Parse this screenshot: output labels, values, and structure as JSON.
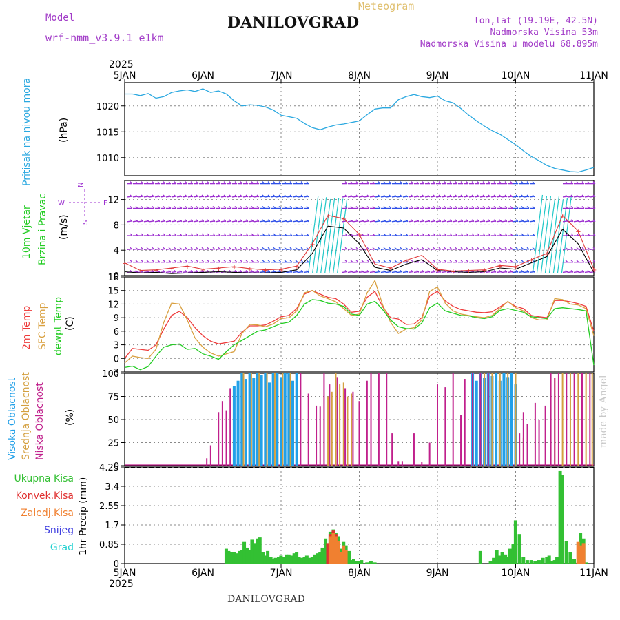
{
  "header": {
    "model_label": "Model",
    "model_name": "wrf-nmm_v3.9.1 e1km",
    "chart_kind": "Meteogram",
    "station": "DANILOVGRAD",
    "lonlat": "lon,lat (19.19E, 42.5N)",
    "elevation": "Nadmorska Visina 53m",
    "elevation_model": "Nadmorska Visina u modelu 68.895m",
    "year": "2025",
    "footer_station": "DANILOVGRAD",
    "made_by": "made by Angel"
  },
  "colors": {
    "pressure": "#2aa8e0",
    "wind_purple": "#9c2fd0",
    "wind_blue": "#3050e8",
    "wind_cyan": "#20c8c8",
    "wind_green": "#2ec82e",
    "wind_red": "#e03838",
    "temp_2m": "#ee3b3b",
    "temp_sfc": "#d9a040",
    "dewpt": "#22cc22",
    "cloud_high": "#22a0e8",
    "cloud_mid": "#d4a040",
    "cloud_low": "#c0208c",
    "rain_total": "#33c033",
    "rain_conv": "#e03030",
    "rain_frozen": "#f08030",
    "snow": "#4040e0",
    "hail": "#20d0d0",
    "grid": "#888888"
  },
  "chart_data": [
    {
      "id": "pressure",
      "type": "line",
      "title": "",
      "ylabel": "Pritisak na nivou mora",
      "unit": "(hPa)",
      "ylim": [
        1006.5,
        1024.5
      ],
      "yticks": [
        1010,
        1015,
        1020
      ],
      "x": [
        0,
        0.1,
        0.2,
        0.3,
        0.4,
        0.5,
        0.6,
        0.7,
        0.8,
        0.9,
        1.0,
        1.1,
        1.2,
        1.3,
        1.4,
        1.5,
        1.6,
        1.7,
        1.8,
        1.9,
        2.0,
        2.1,
        2.2,
        2.3,
        2.4,
        2.5,
        2.6,
        2.7,
        2.8,
        2.9,
        3.0,
        3.1,
        3.2,
        3.3,
        3.4,
        3.5,
        3.6,
        3.7,
        3.8,
        3.9,
        4.0,
        4.1,
        4.2,
        4.3,
        4.4,
        4.5,
        4.6,
        4.7,
        4.8,
        4.9,
        5.0,
        5.1,
        5.2,
        5.3,
        5.4,
        5.5,
        5.6,
        5.7,
        5.8,
        5.9,
        6.0
      ],
      "values": [
        1022.3,
        1022.3,
        1022.0,
        1022.4,
        1021.5,
        1021.8,
        1022.6,
        1022.9,
        1023.1,
        1022.8,
        1023.3,
        1022.6,
        1022.9,
        1022.3,
        1021.0,
        1020.0,
        1020.2,
        1020.1,
        1019.8,
        1019.2,
        1018.2,
        1017.9,
        1017.6,
        1016.6,
        1015.8,
        1015.4,
        1015.9,
        1016.3,
        1016.5,
        1016.8,
        1017.1,
        1018.3,
        1019.4,
        1019.6,
        1019.6,
        1021.2,
        1021.8,
        1022.2,
        1021.8,
        1021.6,
        1021.9,
        1021.0,
        1020.6,
        1019.5,
        1018.2,
        1017.1,
        1016.1,
        1015.2,
        1014.5,
        1013.5,
        1012.5,
        1011.3,
        1010.2,
        1009.4,
        1008.5,
        1007.9,
        1007.6,
        1007.3,
        1007.2,
        1007.6,
        1008.1
      ],
      "color": "pressure"
    },
    {
      "id": "wind",
      "type": "line",
      "title": "",
      "ylabel": "10m Vjetar Brzina i Pravac",
      "unit": "(m/s)",
      "ylim": [
        0,
        15
      ],
      "yticks": [
        0,
        4,
        8,
        12
      ],
      "compass": {
        "n": "N",
        "s": "S",
        "e": "E",
        "w": "W"
      },
      "barb_rows": [
        0.5,
        2.1,
        4.1,
        6.3,
        8.5,
        10.6,
        12.4,
        14.5
      ],
      "x": [
        0,
        0.2,
        0.4,
        0.6,
        0.8,
        1.0,
        1.2,
        1.4,
        1.6,
        1.8,
        2.0,
        2.2,
        2.4,
        2.6,
        2.8,
        3.0,
        3.2,
        3.4,
        3.6,
        3.8,
        4.0,
        4.2,
        4.4,
        4.6,
        4.8,
        5.0,
        5.2,
        5.4,
        5.6,
        5.8,
        6.0
      ],
      "speed": [
        0.6,
        0.4,
        0.5,
        0.3,
        0.4,
        0.5,
        0.6,
        0.5,
        0.4,
        0.4,
        0.5,
        0.9,
        3.5,
        7.8,
        7.5,
        5.0,
        1.3,
        0.8,
        1.8,
        2.5,
        0.8,
        0.6,
        0.5,
        0.6,
        1.2,
        1.0,
        2.0,
        3.0,
        7.3,
        5.0,
        0.5
      ],
      "gust": [
        2.0,
        0.8,
        0.9,
        1.2,
        1.5,
        1.0,
        1.2,
        1.4,
        1.1,
        0.9,
        1.0,
        1.5,
        5.0,
        9.5,
        9.0,
        6.5,
        1.8,
        1.2,
        2.4,
        3.2,
        1.0,
        0.7,
        0.8,
        0.9,
        1.6,
        1.4,
        2.5,
        3.5,
        9.5,
        7.0,
        1.0
      ],
      "shaded_periods": [
        [
          2.35,
          2.75
        ],
        [
          5.22,
          5.6
        ]
      ]
    },
    {
      "id": "temperature",
      "type": "line",
      "title": "",
      "ylabel": "2m Temp / SFC Temp / dewpt Temp",
      "unit": "(C)",
      "ylim": [
        -3,
        18
      ],
      "yticks": [
        -3,
        0,
        3,
        6,
        9,
        12,
        15,
        18
      ],
      "x": [
        0,
        0.1,
        0.2,
        0.3,
        0.4,
        0.5,
        0.6,
        0.7,
        0.8,
        0.9,
        1.0,
        1.1,
        1.2,
        1.3,
        1.4,
        1.5,
        1.6,
        1.7,
        1.8,
        1.9,
        2.0,
        2.1,
        2.2,
        2.3,
        2.4,
        2.5,
        2.6,
        2.7,
        2.8,
        2.9,
        3.0,
        3.1,
        3.2,
        3.3,
        3.4,
        3.5,
        3.6,
        3.7,
        3.8,
        3.9,
        4.0,
        4.1,
        4.2,
        4.3,
        4.4,
        4.5,
        4.6,
        4.7,
        4.8,
        4.9,
        5.0,
        5.1,
        5.2,
        5.3,
        5.4,
        5.5,
        5.6,
        5.7,
        5.8,
        5.9,
        6.0
      ],
      "series": [
        {
          "name": "2m Temp",
          "color": "temp_2m",
          "values": [
            0,
            2.2,
            2.0,
            1.8,
            3,
            6.5,
            9.5,
            10.4,
            9.0,
            6.8,
            5.0,
            3.8,
            3.2,
            3.5,
            3.8,
            5.8,
            7.2,
            7.2,
            7.4,
            8.2,
            9.2,
            9.5,
            11,
            14.2,
            15.0,
            14.2,
            13.5,
            13.2,
            12.0,
            10.2,
            10.4,
            13.5,
            14.8,
            11.4,
            9.0,
            8.7,
            7.5,
            7.6,
            9.0,
            13.8,
            14.8,
            12.7,
            11.5,
            10.8,
            10.5,
            10.2,
            10.1,
            10.3,
            11.4,
            12.5,
            11.5,
            11.0,
            9.5,
            9.2,
            9.0,
            12.8,
            12.8,
            12.5,
            12.1,
            11.5,
            6.0
          ]
        },
        {
          "name": "SFC Temp",
          "color": "temp_sfc",
          "values": [
            -1,
            0.5,
            0.2,
            0,
            2,
            8,
            12.2,
            12.0,
            8.5,
            4.5,
            2.5,
            1.2,
            0.5,
            1.0,
            1.5,
            5.5,
            7.5,
            7.4,
            7.0,
            7.6,
            8.8,
            9.0,
            10.5,
            14.5,
            15.0,
            13.8,
            13.2,
            12.5,
            11.0,
            9.5,
            9.8,
            14.5,
            17.2,
            11.8,
            8.0,
            5.5,
            6.5,
            6.8,
            8.5,
            14.8,
            15.8,
            12.2,
            10.5,
            9.8,
            9.5,
            9.2,
            9.0,
            9.5,
            11.0,
            12.6,
            11.2,
            10.5,
            9.0,
            8.5,
            8.5,
            13.2,
            13.0,
            12.0,
            11.8,
            11.0,
            5.0
          ]
        },
        {
          "name": "dewpt Temp",
          "color": "dewpt",
          "values": [
            -2,
            -1.7,
            -2.5,
            -1.8,
            0.5,
            2.5,
            3.0,
            3.2,
            2.0,
            2.2,
            1.0,
            0.5,
            -0.2,
            1.5,
            3.0,
            4.0,
            5.0,
            6.0,
            6.3,
            7.0,
            7.7,
            8.0,
            9.5,
            12.0,
            13.0,
            12.8,
            12.2,
            12.0,
            11.5,
            9.8,
            9.5,
            12.0,
            12.6,
            10.8,
            8.5,
            7.0,
            6.6,
            6.5,
            7.8,
            11.2,
            12.2,
            10.5,
            10.0,
            9.5,
            9.4,
            9.0,
            8.8,
            9.2,
            10.6,
            11.0,
            10.6,
            10.2,
            9.2,
            9.0,
            8.8,
            11.0,
            11.2,
            11.0,
            10.8,
            10.5,
            -1.5
          ]
        }
      ]
    },
    {
      "id": "clouds",
      "type": "bar",
      "title": "",
      "ylabel": "Visoka Oblacnost / Srednja Oblacnost / Niska Oblacnost",
      "unit": "(%)",
      "ylim": [
        0,
        100
      ],
      "yticks": [
        0,
        25,
        50,
        75,
        100
      ],
      "series": [
        {
          "name": "Visoka Oblacnost",
          "color": "cloud_high",
          "x": [
            1.4,
            1.45,
            1.5,
            1.55,
            1.6,
            1.65,
            1.7,
            1.75,
            1.8,
            1.85,
            1.9,
            1.95,
            2.0,
            2.05,
            2.1,
            2.15,
            2.2,
            4.45,
            4.5,
            4.55,
            4.6,
            4.65,
            4.7,
            4.75,
            4.8,
            4.85,
            4.9,
            4.95,
            5.0
          ],
          "values": [
            86,
            92,
            100,
            94,
            100,
            95,
            100,
            98,
            100,
            90,
            100,
            100,
            96,
            100,
            100,
            92,
            100,
            100,
            92,
            100,
            95,
            100,
            97,
            100,
            92,
            100,
            96,
            100,
            88
          ]
        },
        {
          "name": "Srednja Oblacnost",
          "color": "cloud_mid",
          "x": [
            1.52,
            1.62,
            1.72,
            1.82,
            1.92,
            2.02,
            2.12,
            2.6,
            2.65,
            2.7,
            2.75,
            2.8,
            2.85,
            2.9,
            4.6,
            4.7,
            4.8,
            4.9,
            5.0,
            5.1,
            5.5,
            5.6,
            5.7,
            5.8,
            5.9,
            5.98
          ],
          "values": [
            100,
            100,
            100,
            100,
            100,
            100,
            100,
            75,
            80,
            100,
            88,
            90,
            75,
            78,
            100,
            100,
            100,
            100,
            100,
            30,
            95,
            100,
            100,
            100,
            100,
            100
          ]
        },
        {
          "name": "Niska Oblacnost",
          "color": "cloud_low",
          "x": [
            1.05,
            1.1,
            1.2,
            1.25,
            1.3,
            1.35,
            2.25,
            2.35,
            2.45,
            2.5,
            2.55,
            2.62,
            2.72,
            2.82,
            2.92,
            3.0,
            3.1,
            3.15,
            3.25,
            3.35,
            3.42,
            3.5,
            3.55,
            3.7,
            3.8,
            3.9,
            4.0,
            4.1,
            4.2,
            4.3,
            4.35,
            4.45,
            4.55,
            4.65,
            5.05,
            5.1,
            5.15,
            5.25,
            5.3,
            5.38,
            5.45,
            5.5,
            5.55,
            5.65,
            5.75,
            5.85,
            5.95
          ],
          "values": [
            8,
            22,
            58,
            70,
            60,
            84,
            100,
            78,
            65,
            64,
            100,
            88,
            96,
            84,
            80,
            70,
            92,
            100,
            100,
            100,
            35,
            5,
            5,
            35,
            4,
            25,
            88,
            85,
            100,
            55,
            94,
            100,
            100,
            100,
            35,
            58,
            45,
            68,
            50,
            65,
            100,
            95,
            100,
            100,
            100,
            100,
            100
          ]
        }
      ]
    },
    {
      "id": "precip",
      "type": "bar",
      "title": "",
      "ylabel": "1hr Precip",
      "unit": "(mm)",
      "ylim": [
        0,
        4.25
      ],
      "yticks": [
        0,
        0.85,
        1.7,
        2.55,
        3.4,
        4.25
      ],
      "legend": [
        "Ukupna Kisa",
        "Konvek.Kisa",
        "Zaledj.Kisa",
        "Snijeg",
        "Grad"
      ],
      "legend_colors": [
        "rain_total",
        "rain_conv",
        "rain_frozen",
        "snow",
        "hail"
      ],
      "series": [
        {
          "name": "Ukupna Kisa",
          "color": "rain_total",
          "x": [
            1.3,
            1.33,
            1.36,
            1.4,
            1.43,
            1.47,
            1.5,
            1.53,
            1.57,
            1.6,
            1.63,
            1.67,
            1.7,
            1.73,
            1.77,
            1.8,
            1.83,
            1.87,
            1.9,
            1.93,
            1.97,
            2.0,
            2.03,
            2.07,
            2.1,
            2.13,
            2.17,
            2.2,
            2.23,
            2.27,
            2.3,
            2.33,
            2.37,
            2.4,
            2.43,
            2.47,
            2.5,
            2.53,
            2.57,
            2.6,
            2.63,
            2.67,
            2.7,
            2.73,
            2.77,
            2.8,
            2.83,
            2.87,
            2.9,
            2.93,
            2.97,
            3.0,
            3.03,
            3.1,
            3.15,
            3.2,
            4.55,
            4.68,
            4.72,
            4.76,
            4.8,
            4.83,
            4.87,
            4.9,
            4.93,
            4.97,
            5.0,
            5.05,
            5.1,
            5.15,
            5.2,
            5.25,
            5.3,
            5.35,
            5.4,
            5.43,
            5.47,
            5.5,
            5.53,
            5.57,
            5.6,
            5.65,
            5.7,
            5.75,
            5.8,
            5.83,
            5.87,
            5.9
          ],
          "values": [
            0.65,
            0.55,
            0.5,
            0.5,
            0.45,
            0.55,
            0.6,
            0.95,
            0.7,
            0.6,
            1.05,
            0.9,
            1.1,
            1.15,
            0.5,
            0.35,
            0.55,
            0.3,
            0.2,
            0.25,
            0.3,
            0.35,
            0.3,
            0.4,
            0.4,
            0.35,
            0.45,
            0.5,
            0.3,
            0.25,
            0.3,
            0.35,
            0.25,
            0.3,
            0.4,
            0.45,
            0.5,
            0.7,
            1.1,
            0.6,
            1.4,
            1.5,
            1.35,
            1.2,
            0.65,
            0.95,
            0.8,
            0.55,
            0.15,
            0.2,
            0.1,
            0.1,
            0.15,
            0.05,
            0.1,
            0.05,
            0.55,
            0.1,
            0.25,
            0.6,
            0.35,
            0.5,
            0.4,
            0.3,
            0.65,
            0.85,
            1.9,
            1.3,
            0.3,
            0.15,
            0.15,
            0.1,
            0.15,
            0.25,
            0.3,
            0.35,
            0.1,
            0.15,
            0.3,
            4.1,
            3.9,
            1.0,
            0.5,
            0.2,
            0.05,
            1.35,
            1.1,
            0.05
          ]
        },
        {
          "name": "Konvek.Kisa",
          "color": "rain_conv",
          "x": [
            2.6,
            2.63,
            2.67,
            2.7,
            2.73
          ],
          "values": [
            0.9,
            1.3,
            1.45,
            1.3,
            1.0
          ]
        },
        {
          "name": "Zaledj.Kisa",
          "color": "rain_frozen",
          "x": [
            2.63,
            2.67,
            2.7,
            2.73,
            2.77,
            2.8,
            2.83,
            5.8,
            5.83,
            5.87
          ],
          "values": [
            1.2,
            1.35,
            1.2,
            1.0,
            0.5,
            0.8,
            0.6,
            0.95,
            0.8,
            0.9
          ]
        }
      ]
    }
  ],
  "x_axis": {
    "ticks": [
      "5JAN",
      "6JAN",
      "7JAN",
      "8JAN",
      "9JAN",
      "10JAN",
      "11JAN"
    ],
    "range": [
      0,
      6
    ]
  }
}
